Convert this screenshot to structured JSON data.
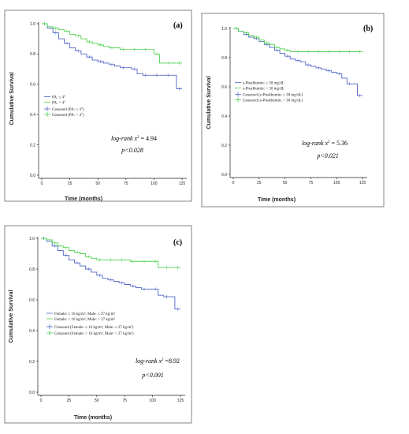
{
  "figure": {
    "y_axis_label": "Cumulative Survival",
    "x_axis_label": "Time (months)"
  },
  "colors": {
    "blue": "#5066c8",
    "green": "#4fd14f"
  },
  "chart_data": [
    {
      "type": "line",
      "panel": "(a)",
      "xlabel": "Time (months)",
      "ylabel": "Cumulative Survival",
      "xlim": [
        0,
        125
      ],
      "ylim": [
        0,
        1.0
      ],
      "xticks": [
        0,
        25,
        50,
        75,
        100,
        125
      ],
      "yticks": [
        0.0,
        0.2,
        0.4,
        0.6,
        0.8,
        1.0
      ],
      "legend": [
        "PA: ≤ 4°",
        "PA: > 4°",
        "Censored (PA: ≤ 4°)",
        "Censored (PA: > 4°)"
      ],
      "legend_position": "middle-left",
      "stat_text": {
        "line1_prefix": "log-rank x",
        "line1_sup": "2",
        "line1_suffix": " = 4.94",
        "line2": "p<0.028"
      },
      "series": [
        {
          "name": "PA: ≤ 4°",
          "color": "#5066c8",
          "x": [
            0,
            5,
            10,
            15,
            20,
            25,
            30,
            35,
            40,
            45,
            50,
            55,
            60,
            65,
            70,
            75,
            80,
            85,
            90,
            95,
            100,
            105,
            110,
            115,
            120,
            125
          ],
          "y": [
            1.0,
            0.97,
            0.94,
            0.9,
            0.87,
            0.84,
            0.82,
            0.8,
            0.78,
            0.76,
            0.75,
            0.74,
            0.73,
            0.72,
            0.71,
            0.71,
            0.7,
            0.67,
            0.66,
            0.66,
            0.66,
            0.66,
            0.66,
            0.66,
            0.57,
            0.57
          ]
        },
        {
          "name": "PA: > 4°",
          "color": "#4fd14f",
          "x": [
            0,
            5,
            10,
            15,
            20,
            25,
            30,
            35,
            40,
            45,
            50,
            55,
            60,
            65,
            70,
            75,
            80,
            85,
            90,
            95,
            100,
            105,
            110,
            115,
            120,
            125
          ],
          "y": [
            1.0,
            0.98,
            0.97,
            0.96,
            0.95,
            0.93,
            0.92,
            0.9,
            0.88,
            0.87,
            0.86,
            0.85,
            0.84,
            0.84,
            0.83,
            0.83,
            0.83,
            0.83,
            0.83,
            0.83,
            0.8,
            0.74,
            0.74,
            0.74,
            0.74,
            0.74
          ]
        }
      ]
    },
    {
      "type": "line",
      "panel": "(b)",
      "xlabel": "Time (months)",
      "ylabel": "Cumulative Survival",
      "xlim": [
        0,
        125
      ],
      "ylim": [
        0,
        1.0
      ],
      "xticks": [
        0,
        25,
        50,
        75,
        100,
        125
      ],
      "yticks": [
        0.0,
        0.2,
        0.4,
        0.6,
        0.8,
        1.0
      ],
      "legend": [
        "s-Prealbumin: ≤ 30 mg/dL",
        "s-Prealbumin: > 30 mg/dL",
        "Censored (s-Prealbumin: ≤ 30 mg/dL)",
        "Censored (s-Prealbumin: > 30 mg/dL)"
      ],
      "legend_position": "middle-left",
      "stat_text": {
        "line1_prefix": "log-rank x",
        "line1_sup": "2",
        "line1_suffix": " = 5.36",
        "line2": "p<0.021"
      },
      "series": [
        {
          "name": "s-Prealbumin: ≤ 30 mg/dL",
          "color": "#5066c8",
          "x": [
            0,
            5,
            10,
            15,
            20,
            25,
            30,
            35,
            40,
            45,
            50,
            55,
            60,
            65,
            70,
            75,
            80,
            85,
            90,
            95,
            100,
            105,
            110,
            115,
            120,
            125
          ],
          "y": [
            1.0,
            0.98,
            0.96,
            0.94,
            0.93,
            0.91,
            0.89,
            0.87,
            0.85,
            0.83,
            0.81,
            0.79,
            0.78,
            0.77,
            0.75,
            0.74,
            0.73,
            0.72,
            0.71,
            0.7,
            0.69,
            0.66,
            0.62,
            0.62,
            0.54,
            0.54
          ]
        },
        {
          "name": "s-Prealbumin: > 30 mg/dL",
          "color": "#4fd14f",
          "x": [
            0,
            5,
            10,
            15,
            20,
            25,
            30,
            35,
            40,
            45,
            50,
            55,
            60,
            65,
            70,
            75,
            80,
            85,
            90,
            95,
            100,
            105,
            110,
            115,
            120,
            125
          ],
          "y": [
            1.0,
            0.98,
            0.97,
            0.95,
            0.94,
            0.92,
            0.9,
            0.89,
            0.87,
            0.86,
            0.85,
            0.84,
            0.84,
            0.84,
            0.84,
            0.84,
            0.84,
            0.84,
            0.84,
            0.84,
            0.84,
            0.84,
            0.84,
            0.84,
            0.84,
            0.84
          ]
        }
      ]
    },
    {
      "type": "line",
      "panel": "(c)",
      "xlabel": "Time (months)",
      "ylabel": "Cumulative Survival",
      "xlim": [
        0,
        125
      ],
      "ylim": [
        0,
        1.0
      ],
      "xticks": [
        0,
        25,
        50,
        75,
        100,
        125
      ],
      "yticks": [
        0.0,
        0.2,
        0.4,
        0.6,
        0.8,
        1.0
      ],
      "legend": [
        "Female: ≤ 16 kg/m²; Male: ≤ 27 kg/m²",
        "Female: > 16 kg/m²; Male: > 27 kg/m²",
        "Censored (Female: ≤ 16 kg/m²; Male: ≤ 27 kg/m²)",
        "Censored (Female: > 16 kg/m²; Male: > 27 kg/m²)"
      ],
      "legend_position": "middle-left",
      "stat_text": {
        "line1_prefix": "log-rank x",
        "line1_sup": "2",
        "line1_suffix": " =8.92",
        "line2": "p<0.001"
      },
      "series": [
        {
          "name": "Female: ≤ 16 kg/m²; Male: ≤ 27 kg/m²",
          "color": "#5066c8",
          "x": [
            0,
            5,
            10,
            15,
            20,
            25,
            30,
            35,
            40,
            45,
            50,
            55,
            60,
            65,
            70,
            75,
            80,
            85,
            90,
            95,
            100,
            105,
            110,
            115,
            120,
            125
          ],
          "y": [
            1.0,
            0.98,
            0.95,
            0.92,
            0.89,
            0.86,
            0.84,
            0.82,
            0.8,
            0.78,
            0.76,
            0.74,
            0.73,
            0.72,
            0.71,
            0.7,
            0.69,
            0.68,
            0.67,
            0.67,
            0.67,
            0.63,
            0.62,
            0.62,
            0.54,
            0.54
          ]
        },
        {
          "name": "Female: > 16 kg/m²; Male: > 27 kg/m²",
          "color": "#4fd14f",
          "x": [
            0,
            5,
            10,
            15,
            20,
            25,
            30,
            35,
            40,
            45,
            50,
            55,
            60,
            65,
            70,
            75,
            80,
            85,
            90,
            95,
            100,
            105,
            110,
            115,
            120,
            125
          ],
          "y": [
            1.0,
            0.99,
            0.97,
            0.95,
            0.94,
            0.92,
            0.91,
            0.9,
            0.88,
            0.87,
            0.86,
            0.86,
            0.86,
            0.86,
            0.86,
            0.86,
            0.85,
            0.85,
            0.85,
            0.85,
            0.85,
            0.81,
            0.81,
            0.81,
            0.81,
            0.81
          ]
        }
      ]
    }
  ]
}
